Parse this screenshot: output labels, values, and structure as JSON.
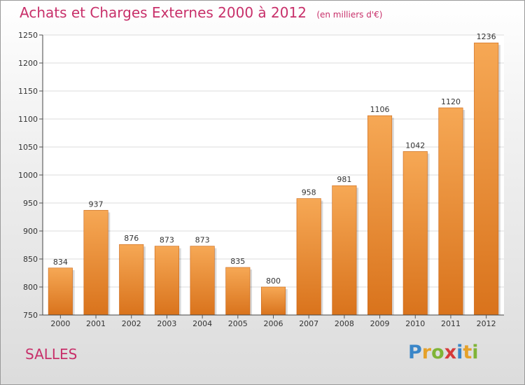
{
  "chart_data": {
    "type": "bar",
    "title": "Achats et Charges Externes 2000 à 2012",
    "subtitle": "(en milliers d'€)",
    "categories": [
      "2000",
      "2001",
      "2002",
      "2003",
      "2004",
      "2005",
      "2006",
      "2007",
      "2008",
      "2009",
      "2010",
      "2011",
      "2012"
    ],
    "values": [
      834,
      937,
      876,
      873,
      873,
      835,
      800,
      958,
      981,
      1106,
      1042,
      1120,
      1236
    ],
    "ylim": [
      750,
      1250
    ],
    "yticks": [
      750,
      800,
      850,
      900,
      950,
      1000,
      1050,
      1100,
      1150,
      1200,
      1250
    ],
    "grid": true,
    "bar_color_top": "#f6a855",
    "bar_color_bottom": "#d9731c"
  },
  "footer": {
    "commune": "SALLES",
    "logo_text": "Proxiti"
  }
}
